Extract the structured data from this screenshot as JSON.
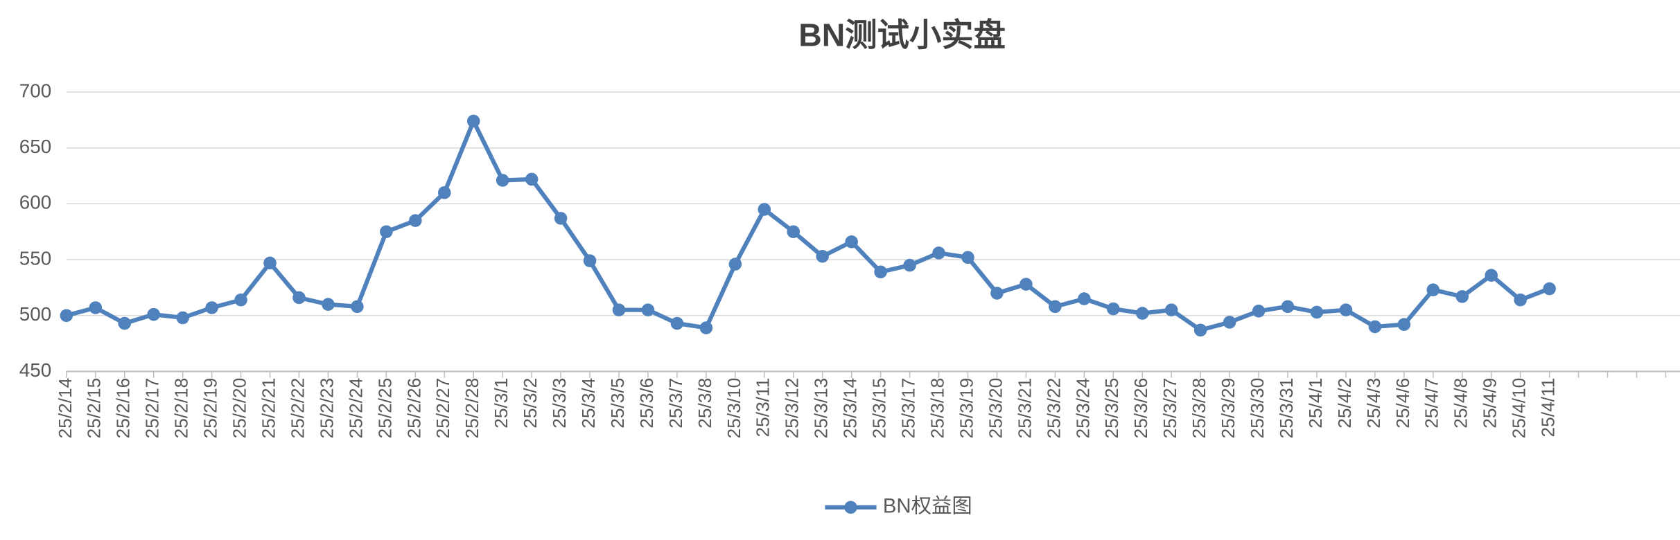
{
  "chart_data": {
    "type": "line",
    "title": "BN测试小实盘",
    "categories": [
      "25/2/14",
      "25/2/15",
      "25/2/16",
      "25/2/17",
      "25/2/18",
      "25/2/19",
      "25/2/20",
      "25/2/21",
      "25/2/22",
      "25/2/23",
      "25/2/24",
      "25/2/25",
      "25/2/26",
      "25/2/27",
      "25/2/28",
      "25/3/1",
      "25/3/2",
      "25/3/3",
      "25/3/4",
      "25/3/5",
      "25/3/6",
      "25/3/7",
      "25/3/8",
      "25/3/10",
      "25/3/11",
      "25/3/12",
      "25/3/13",
      "25/3/14",
      "25/3/15",
      "25/3/17",
      "25/3/18",
      "25/3/19",
      "25/3/20",
      "25/3/21",
      "25/3/22",
      "25/3/24",
      "25/3/25",
      "25/3/26",
      "25/3/27",
      "25/3/28",
      "25/3/29",
      "25/3/30",
      "25/3/31",
      "25/4/1",
      "25/4/2",
      "25/4/3",
      "25/4/6",
      "25/4/7",
      "25/4/8",
      "25/4/9",
      "25/4/10",
      "25/4/11",
      null,
      null,
      null,
      null
    ],
    "series": [
      {
        "name": "BN权益图",
        "color": "#4f81bd",
        "values": [
          500,
          507,
          493,
          501,
          498,
          507,
          514,
          547,
          516,
          510,
          508,
          575,
          585,
          610,
          674,
          621,
          622,
          587,
          549,
          505,
          505,
          493,
          489,
          546,
          595,
          575,
          553,
          566,
          539,
          545,
          556,
          552,
          520,
          528,
          508,
          515,
          506,
          502,
          505,
          487,
          494,
          504,
          508,
          503,
          505,
          490,
          492,
          523,
          517,
          536,
          514,
          524,
          null,
          null,
          null,
          null
        ]
      }
    ],
    "ylim": [
      450,
      700
    ],
    "yticks": [
      450,
      500,
      550,
      600,
      650,
      700
    ],
    "grid": true,
    "legend": "bottom"
  }
}
